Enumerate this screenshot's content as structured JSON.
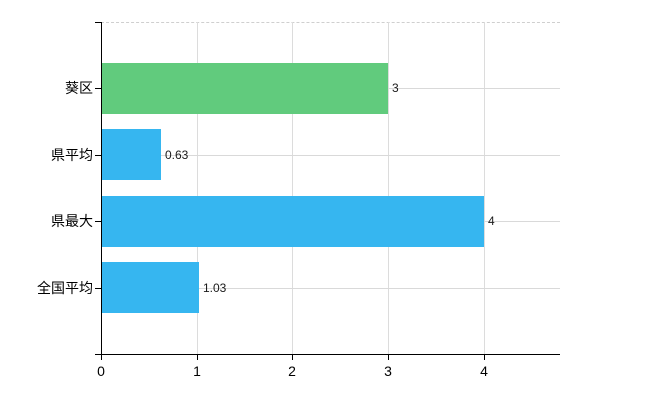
{
  "chart": {
    "colors": {
      "background": "#ffffff",
      "default_bar": "#36b6f0",
      "highlight_bar": "#61cb7d",
      "grid": "#dcdcdc",
      "axis": "#000000",
      "text": "#000000"
    }
  },
  "chart_data": {
    "type": "bar",
    "orientation": "horizontal",
    "title": "",
    "xlabel": "",
    "ylabel": "",
    "categories": [
      "葵区",
      "県平均",
      "県最大",
      "全国平均"
    ],
    "values": [
      3,
      0.63,
      4,
      1.03
    ],
    "value_labels": [
      "3",
      "0.63",
      "4",
      "1.03"
    ],
    "bar_colors": [
      "#61cb7d",
      "#36b6f0",
      "#36b6f0",
      "#36b6f0"
    ],
    "xlim": [
      0,
      4.8
    ],
    "x_ticks": [
      0,
      1,
      2,
      3,
      4
    ],
    "x_tick_labels": [
      "0",
      "1",
      "2",
      "3",
      "4"
    ],
    "grid": true,
    "legend": null
  }
}
